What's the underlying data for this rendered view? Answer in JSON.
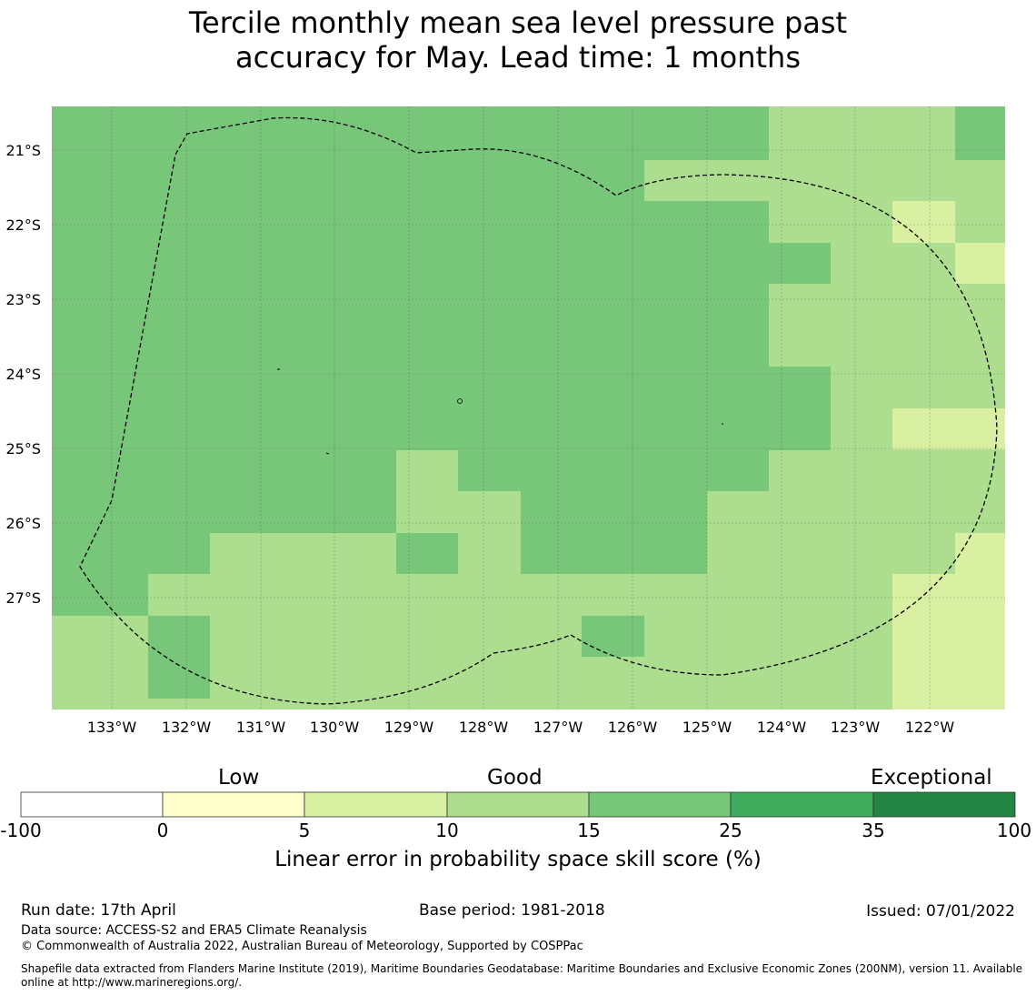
{
  "title_line1": "Tercile monthly mean sea level pressure past",
  "title_line2": "accuracy for May. Lead time: 1 months",
  "map": {
    "lon_labels": [
      "133°W",
      "132°W",
      "131°W",
      "130°W",
      "129°W",
      "128°W",
      "127°W",
      "126°W",
      "125°W",
      "124°W",
      "123°W",
      "122°W"
    ],
    "lat_labels": [
      "21°S",
      "22°S",
      "23°S",
      "24°S",
      "25°S",
      "26°S",
      "27°S"
    ]
  },
  "colorbar": {
    "categories": [
      "Low",
      "Good",
      "Exceptional"
    ],
    "ticks": [
      "-100",
      "0",
      "5",
      "10",
      "15",
      "25",
      "35",
      "100"
    ],
    "colors": [
      "#ffffff",
      "#ffffcc",
      "#d9f0a3",
      "#addd8e",
      "#78c679",
      "#41ab5d",
      "#238443"
    ],
    "label": "Linear error in probability space skill score (%)"
  },
  "footer": {
    "run_date": "Run date: 17th April",
    "base_period": "Base period: 1981-2018",
    "issued": "Issued: 07/01/2022",
    "data_source": "Data source: ACCESS-S2 and ERA5 Climate Reanalysis",
    "copyright": "© Commonwealth of Australia 2022, Australian Bureau of Meteorology, Supported by COSPPac",
    "shapefile_line1": "Shapefile data extracted from Flanders Marine Institute (2019), Maritime Boundaries Geodatabase: Maritime Boundaries and Exclusive Economic Zones (200NM), version 11. Available",
    "shapefile_line2": "online at http://www.marineregions.org/."
  }
}
